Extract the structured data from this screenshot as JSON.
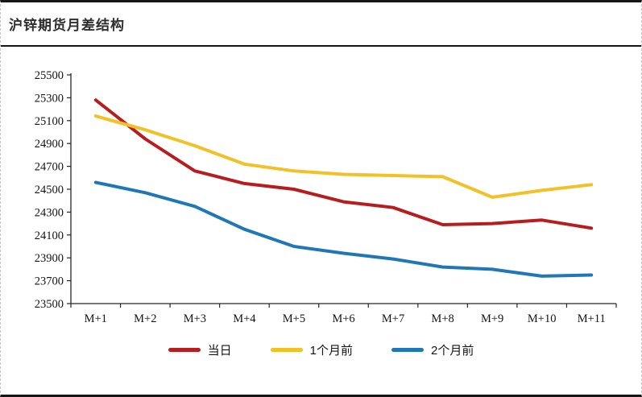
{
  "header": {
    "title": "沪锌期货月差结构"
  },
  "colors": {
    "border_dark": "#161616",
    "axis": "#262626",
    "tick_text": "#141414",
    "background": "#ffffff",
    "red": "#b71c1f",
    "gold": "#f2c027",
    "blue": "#1f78b5"
  },
  "chart_data": {
    "type": "line",
    "title": "沪锌期货月差结构",
    "xlabel": "",
    "ylabel": "",
    "categories": [
      "M+1",
      "M+2",
      "M+3",
      "M+4",
      "M+5",
      "M+6",
      "M+7",
      "M+8",
      "M+9",
      "M+10",
      "M+11"
    ],
    "series": [
      {
        "name": "当日",
        "color": "#b71c1f",
        "values": [
          25280,
          24940,
          24660,
          24550,
          24500,
          24390,
          24340,
          24190,
          24200,
          24230,
          24160
        ]
      },
      {
        "name": "1个月前",
        "color": "#f2c027",
        "values": [
          25140,
          25020,
          24880,
          24720,
          24660,
          24630,
          24620,
          24610,
          24430,
          24490,
          24540
        ]
      },
      {
        "name": "2个月前",
        "color": "#1f78b5",
        "values": [
          24560,
          24470,
          24350,
          24150,
          24000,
          23940,
          23890,
          23820,
          23800,
          23740,
          23750
        ]
      }
    ],
    "ylim": [
      23500,
      25500
    ],
    "ytick_step": 200,
    "grid": false,
    "legend_position": "bottom",
    "line_width": 4
  }
}
